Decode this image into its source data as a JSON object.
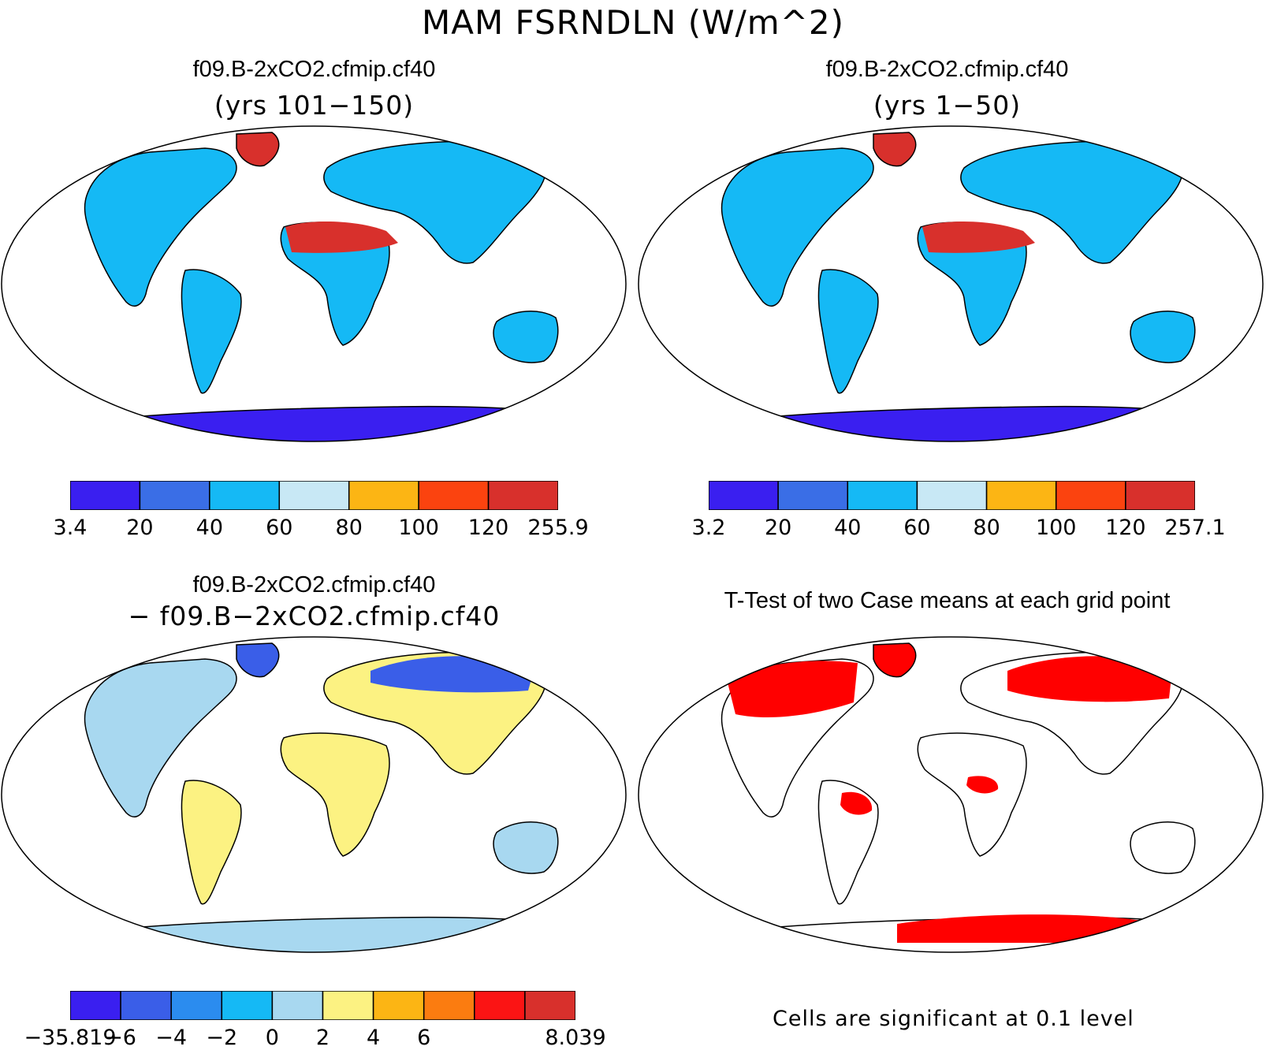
{
  "title": "MAM FSRNDLN (W/m^2)",
  "panels": [
    {
      "title": "f09.B-2xCO2.cfmip.cf40",
      "subtitle": "(yrs 101−150)",
      "colorbar": {
        "colors": [
          "#3a1ff0",
          "#3a6ee6",
          "#15b9f5",
          "#c8e8f5",
          "#fcb514",
          "#fb430f",
          "#d8302c"
        ],
        "tick_labels": [
          "3.4",
          "20",
          "40",
          "60",
          "80",
          "100",
          "120",
          "255.9"
        ]
      }
    },
    {
      "title": "f09.B-2xCO2.cfmip.cf40",
      "subtitle": "(yrs 1−50)",
      "colorbar": {
        "colors": [
          "#3a1ff0",
          "#3a6ee6",
          "#15b9f5",
          "#c8e8f5",
          "#fcb514",
          "#fb430f",
          "#d8302c"
        ],
        "tick_labels": [
          "3.2",
          "20",
          "40",
          "60",
          "80",
          "100",
          "120",
          "257.1"
        ]
      }
    },
    {
      "title": "f09.B-2xCO2.cfmip.cf40",
      "subtitle": "− f09.B−2xCO2.cfmip.cf40",
      "colorbar": {
        "colors": [
          "#3a1ff0",
          "#3a5ee8",
          "#2b8cef",
          "#15b9f5",
          "#a8d8f0",
          "#fcf282",
          "#fcb514",
          "#fb7c10",
          "#fb1414",
          "#d8302c"
        ],
        "tick_labels": [
          "−35.819",
          "−6",
          "−4",
          "−2",
          "0",
          "2",
          "4",
          "6",
          "8.039"
        ]
      }
    },
    {
      "title": "T-Test of two Case means at each grid point",
      "footnote": "Cells are significant at 0.1 level",
      "significance_color": "#ff0000"
    }
  ]
}
